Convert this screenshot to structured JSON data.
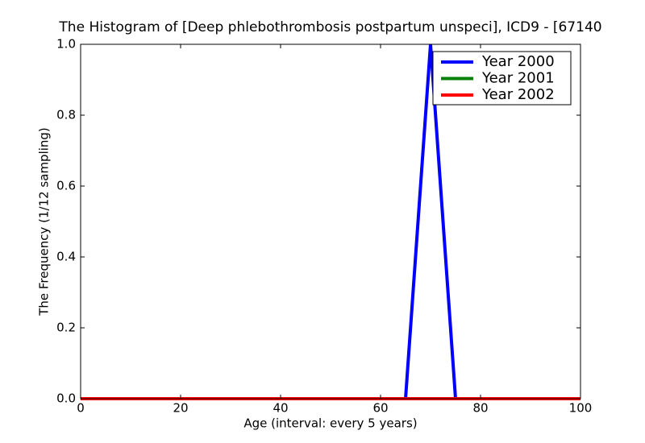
{
  "chart_data": {
    "type": "line",
    "title": "The Histogram of [Deep phlebothrombosis postpartum unspeci], ICD9 - [67140",
    "xlabel": "Age (interval: every 5 years)",
    "ylabel": "The Frequency (1/12 sampling)",
    "x": [
      0,
      5,
      10,
      15,
      20,
      25,
      30,
      35,
      40,
      45,
      50,
      55,
      60,
      65,
      70,
      75,
      80,
      85,
      90,
      95,
      100
    ],
    "series": [
      {
        "name": "Year 2000",
        "color": "#0000ff",
        "values": [
          0,
          0,
          0,
          0,
          0,
          0,
          0,
          0,
          0,
          0,
          0,
          0,
          0,
          0,
          1.0,
          0,
          0,
          0,
          0,
          0,
          0
        ]
      },
      {
        "name": "Year 2001",
        "color": "#008000",
        "values": [
          0,
          0,
          0,
          0,
          0,
          0,
          0,
          0,
          0,
          0,
          0,
          0,
          0,
          0,
          0,
          0,
          0,
          0,
          0,
          0,
          0
        ]
      },
      {
        "name": "Year 2002",
        "color": "#ff0000",
        "values": [
          0,
          0,
          0,
          0,
          0,
          0,
          0,
          0,
          0,
          0,
          0,
          0,
          0,
          0,
          0,
          0,
          0,
          0,
          0,
          0,
          0
        ]
      }
    ],
    "xlim": [
      0,
      100
    ],
    "xticks": [
      0,
      20,
      40,
      60,
      80,
      100
    ],
    "ylim": [
      0,
      1.0
    ],
    "yticks": [
      {
        "value": 0,
        "label": "0.0"
      },
      0.2,
      0.4,
      0.6,
      0.8,
      {
        "value": 1.0,
        "label": "1.0"
      }
    ],
    "legend": "upper right"
  }
}
